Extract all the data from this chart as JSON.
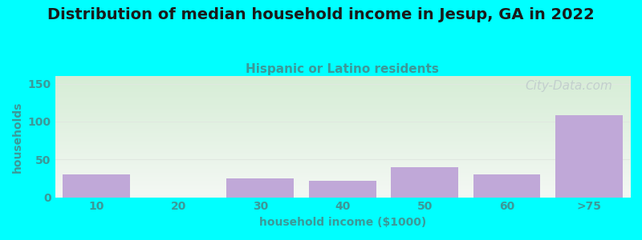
{
  "title": "Distribution of median household income in Jesup, GA in 2022",
  "subtitle": "Hispanic or Latino residents",
  "xlabel": "household income ($1000)",
  "ylabel": "households",
  "background_color": "#00FFFF",
  "plot_bg_gradient_top": "#d6edd6",
  "plot_bg_gradient_bottom": "#f4f8f4",
  "bar_color": "#c0a8d8",
  "categories": [
    "10",
    "20",
    "30",
    "40",
    "50",
    "60",
    ">75"
  ],
  "values": [
    30,
    0,
    25,
    22,
    40,
    30,
    108
  ],
  "ylim": [
    0,
    160
  ],
  "yticks": [
    0,
    50,
    100,
    150
  ],
  "title_fontsize": 14,
  "subtitle_fontsize": 11,
  "subtitle_color": "#3b9999",
  "axis_label_color": "#3b9999",
  "tick_label_color": "#3b9999",
  "watermark": "City-Data.com",
  "watermark_color": "#c0cccc",
  "watermark_fontsize": 11,
  "grid_color": "#e0e8e0"
}
